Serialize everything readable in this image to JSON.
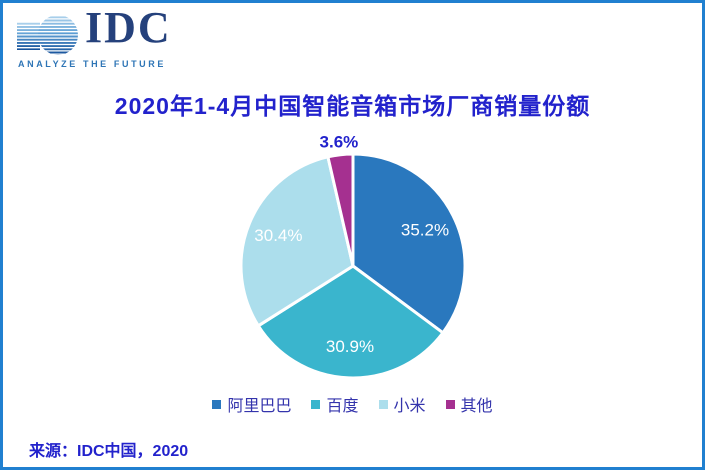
{
  "window": {
    "border_color": "#2080D0",
    "background": "#FFFFFF"
  },
  "logo": {
    "text": "IDC",
    "tagline": "ANALYZE THE FUTURE",
    "text_color": "#25417C",
    "tagline_color": "#2E75B6"
  },
  "title": {
    "text": "2020年1-4月中国智能音箱市场厂商销量份额",
    "color": "#2222CC"
  },
  "source": {
    "text": "来源：IDC中国，2020",
    "color": "#2222CC"
  },
  "chart_data": {
    "type": "pie",
    "title": "2020年1-4月中国智能音箱市场厂商销量份额",
    "categories": [
      "阿里巴巴",
      "百度",
      "小米",
      "其他"
    ],
    "values": [
      35.2,
      30.9,
      30.4,
      3.6
    ],
    "unit": "%",
    "data_labels": [
      "35.2%",
      "30.9%",
      "30.4%",
      "3.6%"
    ],
    "colors": [
      "#2A78BE",
      "#3AB5CD",
      "#ACDEEC",
      "#A53090"
    ],
    "start_angle_deg": 0,
    "direction": "clockwise",
    "slice_border_color": "#FFFFFF",
    "label_placement": [
      "inside",
      "inside",
      "inside",
      "outside"
    ],
    "inside_label_color": "#FFFFFF",
    "outside_label_color": "#2222CC",
    "legend_position": "bottom",
    "legend_text_color": "#3434AC"
  }
}
